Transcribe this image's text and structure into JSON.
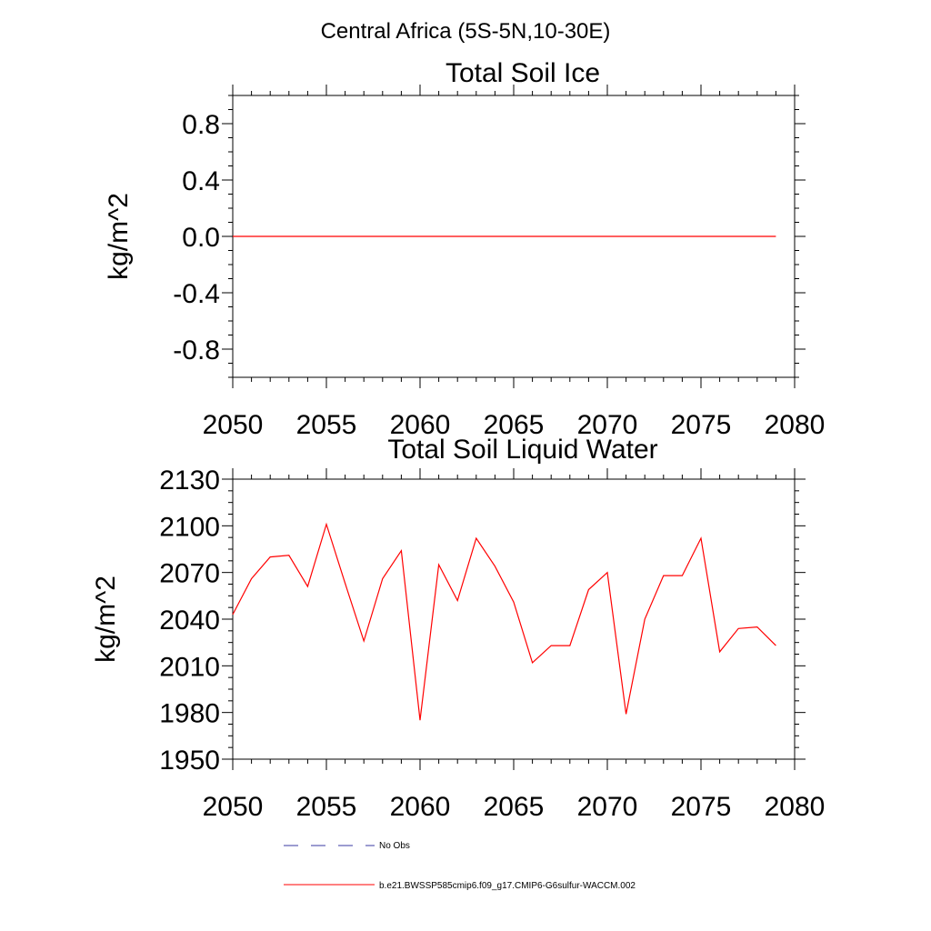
{
  "page_title": "Central Africa (5S-5N,10-30E)",
  "chart_data": [
    {
      "type": "line",
      "title": "Total Soil Ice",
      "ylabel": "kg/m^2",
      "xlabel": "",
      "xlim": [
        2050,
        2080
      ],
      "ylim": [
        -1.0,
        1.0
      ],
      "x_ticks": [
        "2050",
        "2055",
        "2060",
        "2065",
        "2070",
        "2075",
        "2080"
      ],
      "y_ticks": [
        "0.8",
        "0.4",
        "0.0",
        "-0.4",
        "-0.8"
      ],
      "series": [
        {
          "name": "b.e21.BWSSP585cmip6.f09_g17.CMIP6-G6sulfur-WACCM.002",
          "color": "#ff0000",
          "x": [
            2050,
            2051,
            2052,
            2053,
            2054,
            2055,
            2056,
            2057,
            2058,
            2059,
            2060,
            2061,
            2062,
            2063,
            2064,
            2065,
            2066,
            2067,
            2068,
            2069,
            2070,
            2071,
            2072,
            2073,
            2074,
            2075,
            2076,
            2077,
            2078,
            2079
          ],
          "y": [
            0,
            0,
            0,
            0,
            0,
            0,
            0,
            0,
            0,
            0,
            0,
            0,
            0,
            0,
            0,
            0,
            0,
            0,
            0,
            0,
            0,
            0,
            0,
            0,
            0,
            0,
            0,
            0,
            0,
            0
          ]
        }
      ]
    },
    {
      "type": "line",
      "title": "Total Soil Liquid Water",
      "ylabel": "kg/m^2",
      "xlabel": "",
      "xlim": [
        2050,
        2080
      ],
      "ylim": [
        1950,
        2130
      ],
      "x_ticks": [
        "2050",
        "2055",
        "2060",
        "2065",
        "2070",
        "2075",
        "2080"
      ],
      "y_ticks": [
        "2130",
        "2100",
        "2070",
        "2040",
        "2010",
        "1980",
        "1950"
      ],
      "series": [
        {
          "name": "b.e21.BWSSP585cmip6.f09_g17.CMIP6-G6sulfur-WACCM.002",
          "color": "#ff0000",
          "x": [
            2050,
            2051,
            2052,
            2053,
            2054,
            2055,
            2056,
            2057,
            2058,
            2059,
            2060,
            2061,
            2062,
            2063,
            2064,
            2065,
            2066,
            2067,
            2068,
            2069,
            2070,
            2071,
            2072,
            2073,
            2074,
            2075,
            2076,
            2077,
            2078,
            2079
          ],
          "y": [
            2043,
            2066,
            2080,
            2081,
            2061,
            2101,
            2063,
            2026,
            2066,
            2084,
            1975,
            2075,
            2052,
            2092,
            2074,
            2051,
            2012,
            2023,
            2023,
            2059,
            2070,
            1979,
            2040,
            2068,
            2068,
            2092,
            2019,
            2034,
            2035,
            2023
          ]
        }
      ]
    }
  ],
  "legend": [
    {
      "label": "No Obs",
      "color": "#3a3aa0",
      "style": "dashed"
    },
    {
      "label": "b.e21.BWSSP585cmip6.f09_g17.CMIP6-G6sulfur-WACCM.002",
      "color": "#ff0000",
      "style": "solid"
    }
  ]
}
